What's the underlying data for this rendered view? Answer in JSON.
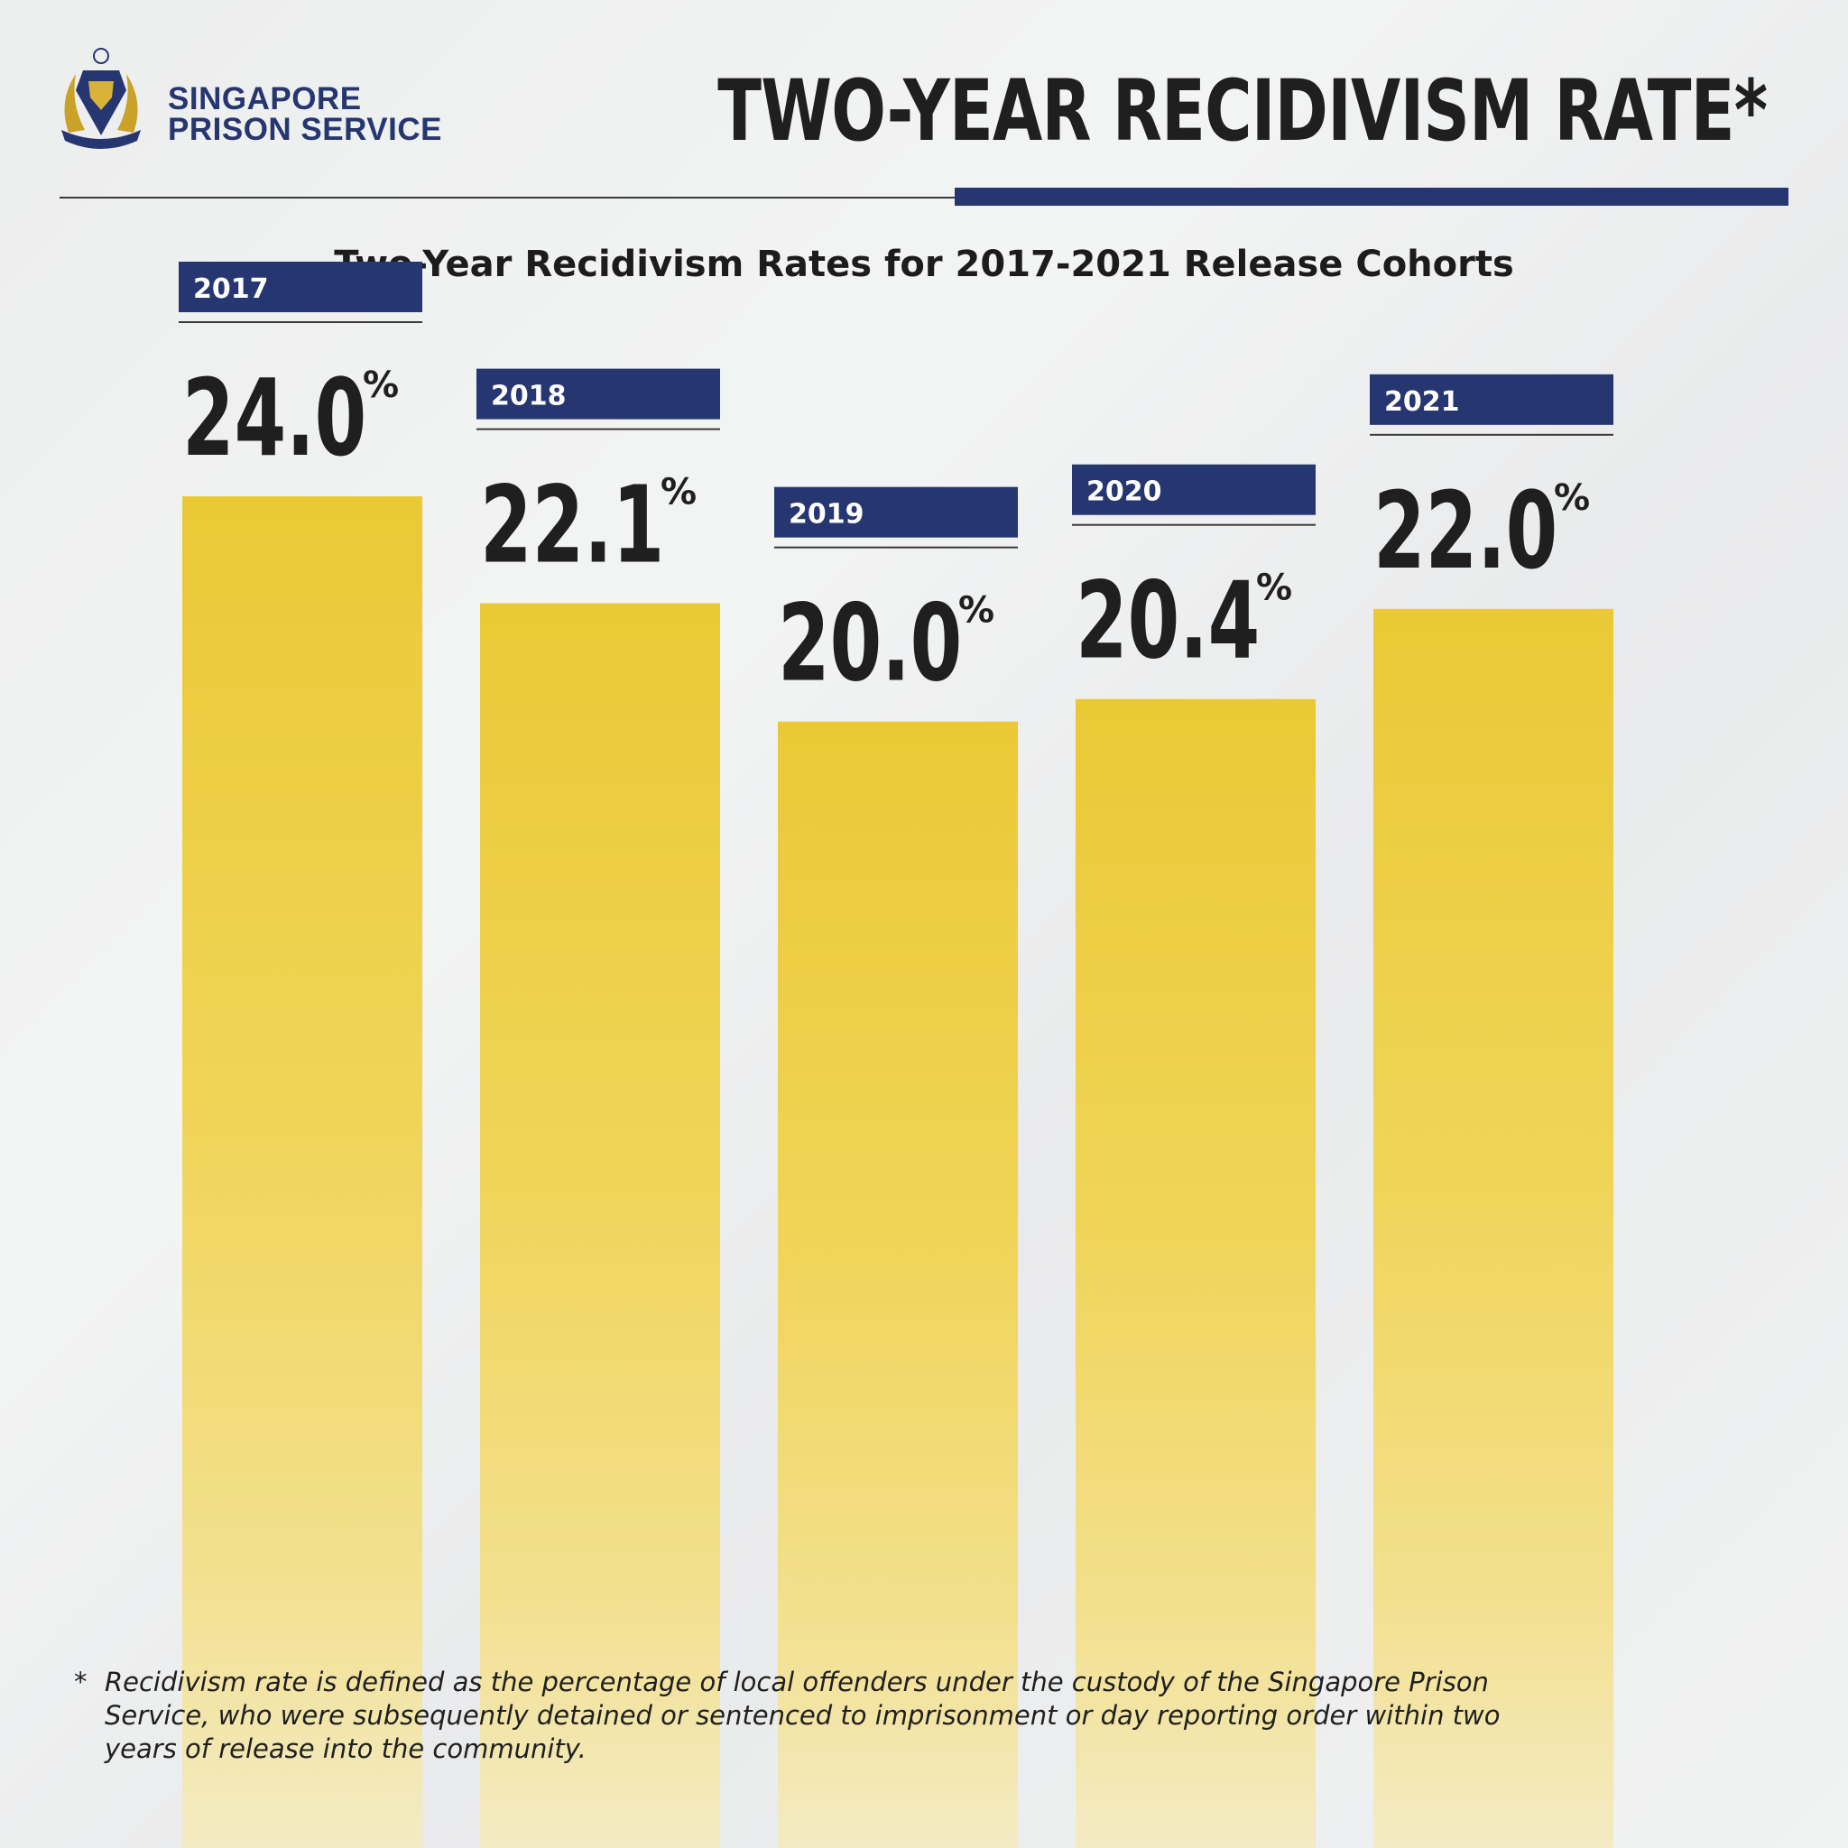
{
  "header": {
    "org_line1": "SINGAPORE",
    "org_line2": "PRISON SERVICE",
    "title": "TWO-YEAR RECIDIVISM RATE*"
  },
  "colors": {
    "navy": "#263671",
    "bar_yellow": "#eccb3c",
    "text_dark": "#1f1f1f"
  },
  "chart_data": {
    "type": "bar",
    "title": "Two-Year Recidivism Rates for 2017-2021 Release Cohorts",
    "categories": [
      "2017",
      "2018",
      "2019",
      "2020",
      "2021"
    ],
    "values": [
      24.0,
      22.1,
      20.0,
      20.4,
      22.0
    ],
    "value_labels": [
      "24.0",
      "22.1",
      "20.0",
      "20.4",
      "22.0"
    ],
    "unit_symbol": "%",
    "xlabel": "",
    "ylabel": "",
    "grid": false,
    "legend": "none"
  },
  "footnote": {
    "marker": "*",
    "text": "Recidivism rate is defined as the percentage of local offenders under the custody of the Singapore Prison Service, who were subsequently detained or sentenced to imprisonment or day reporting order within two years of release into the community."
  }
}
